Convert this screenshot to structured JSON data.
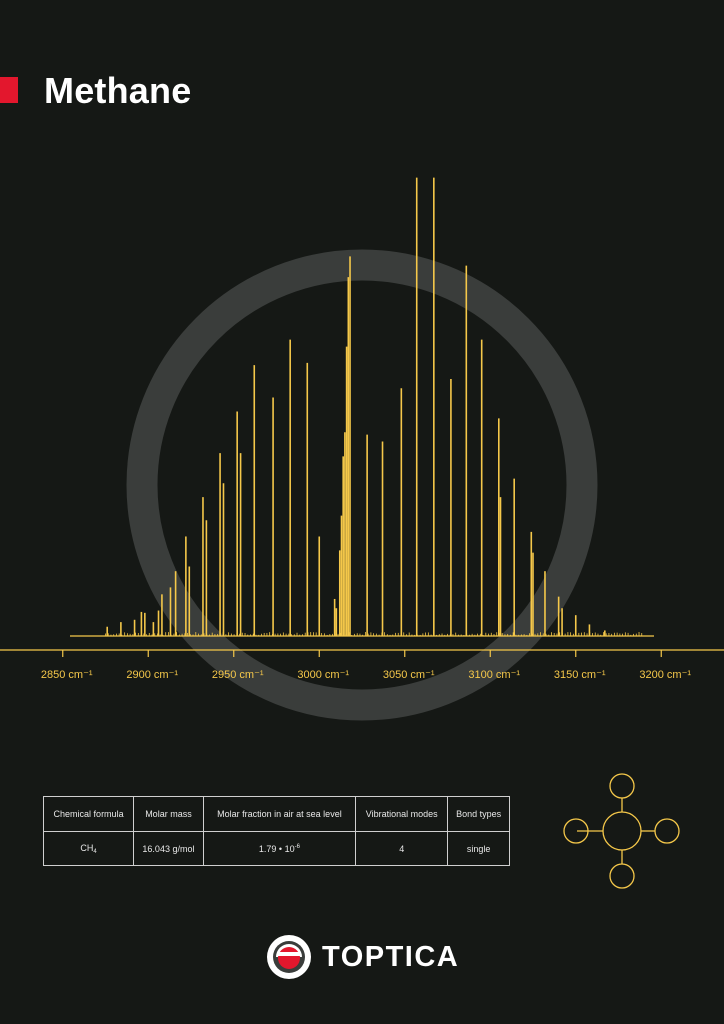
{
  "header": {
    "title": "Methane"
  },
  "chart_data": {
    "type": "bar",
    "xlim": [
      2825,
      3225
    ],
    "ylim": [
      0,
      1
    ],
    "x_tick_values": [
      2850,
      2900,
      2950,
      3000,
      3050,
      3100,
      3150,
      3200
    ],
    "x_tick_labels": [
      "2850 cm⁻¹",
      "2900 cm⁻¹",
      "2950 cm⁻¹",
      "3000 cm⁻¹",
      "3050 cm⁻¹",
      "3100 cm⁻¹",
      "3150 cm⁻¹",
      "3200 cm⁻¹"
    ],
    "grid": false,
    "peaks": [
      {
        "x": 2876,
        "y": 0.02
      },
      {
        "x": 2884,
        "y": 0.03
      },
      {
        "x": 2892,
        "y": 0.035
      },
      {
        "x": 2896,
        "y": 0.052
      },
      {
        "x": 2898,
        "y": 0.05
      },
      {
        "x": 2903,
        "y": 0.03
      },
      {
        "x": 2906,
        "y": 0.055
      },
      {
        "x": 2908,
        "y": 0.09
      },
      {
        "x": 2913,
        "y": 0.105
      },
      {
        "x": 2916,
        "y": 0.14
      },
      {
        "x": 2922,
        "y": 0.215
      },
      {
        "x": 2924,
        "y": 0.15
      },
      {
        "x": 2932,
        "y": 0.3
      },
      {
        "x": 2934,
        "y": 0.25
      },
      {
        "x": 2942,
        "y": 0.395
      },
      {
        "x": 2944,
        "y": 0.33
      },
      {
        "x": 2952,
        "y": 0.485
      },
      {
        "x": 2954,
        "y": 0.395
      },
      {
        "x": 2962,
        "y": 0.585
      },
      {
        "x": 2973,
        "y": 0.515
      },
      {
        "x": 2983,
        "y": 0.64
      },
      {
        "x": 2993,
        "y": 0.59
      },
      {
        "x": 3000,
        "y": 0.215
      },
      {
        "x": 3009,
        "y": 0.08
      },
      {
        "x": 3010,
        "y": 0.06
      },
      {
        "x": 3012,
        "y": 0.185
      },
      {
        "x": 3013,
        "y": 0.26
      },
      {
        "x": 3014,
        "y": 0.388
      },
      {
        "x": 3015,
        "y": 0.44
      },
      {
        "x": 3016,
        "y": 0.625
      },
      {
        "x": 3017,
        "y": 0.775
      },
      {
        "x": 3018,
        "y": 0.82
      },
      {
        "x": 3028,
        "y": 0.435
      },
      {
        "x": 3037,
        "y": 0.42
      },
      {
        "x": 3048,
        "y": 0.535
      },
      {
        "x": 3057,
        "y": 0.99
      },
      {
        "x": 3067,
        "y": 0.99
      },
      {
        "x": 3077,
        "y": 0.555
      },
      {
        "x": 3086,
        "y": 0.8
      },
      {
        "x": 3095,
        "y": 0.64
      },
      {
        "x": 3105,
        "y": 0.47
      },
      {
        "x": 3106,
        "y": 0.3
      },
      {
        "x": 3114,
        "y": 0.34
      },
      {
        "x": 3124,
        "y": 0.225
      },
      {
        "x": 3125,
        "y": 0.18
      },
      {
        "x": 3132,
        "y": 0.14
      },
      {
        "x": 3140,
        "y": 0.085
      },
      {
        "x": 3142,
        "y": 0.06
      },
      {
        "x": 3150,
        "y": 0.045
      },
      {
        "x": 3158,
        "y": 0.025
      },
      {
        "x": 3167,
        "y": 0.012
      }
    ],
    "colors": {
      "peak": "#f5c84a",
      "axis": "#f5c84a",
      "ring": "#3a3d3b"
    }
  },
  "properties": {
    "headers": [
      "Chemical formula",
      "Molar mass",
      "Molar fraction in air at sea level",
      "Vibrational modes",
      "Bond types"
    ],
    "formula_base": "CH",
    "formula_sub": "4",
    "molar_mass": "16.043 g/mol",
    "molar_fraction_base": "1.79 • 10",
    "molar_fraction_exp": "-6",
    "vibrational_modes": "4",
    "bond_types": "single"
  },
  "logo": {
    "text": "TOPTICA",
    "accent": "#e3172d"
  }
}
